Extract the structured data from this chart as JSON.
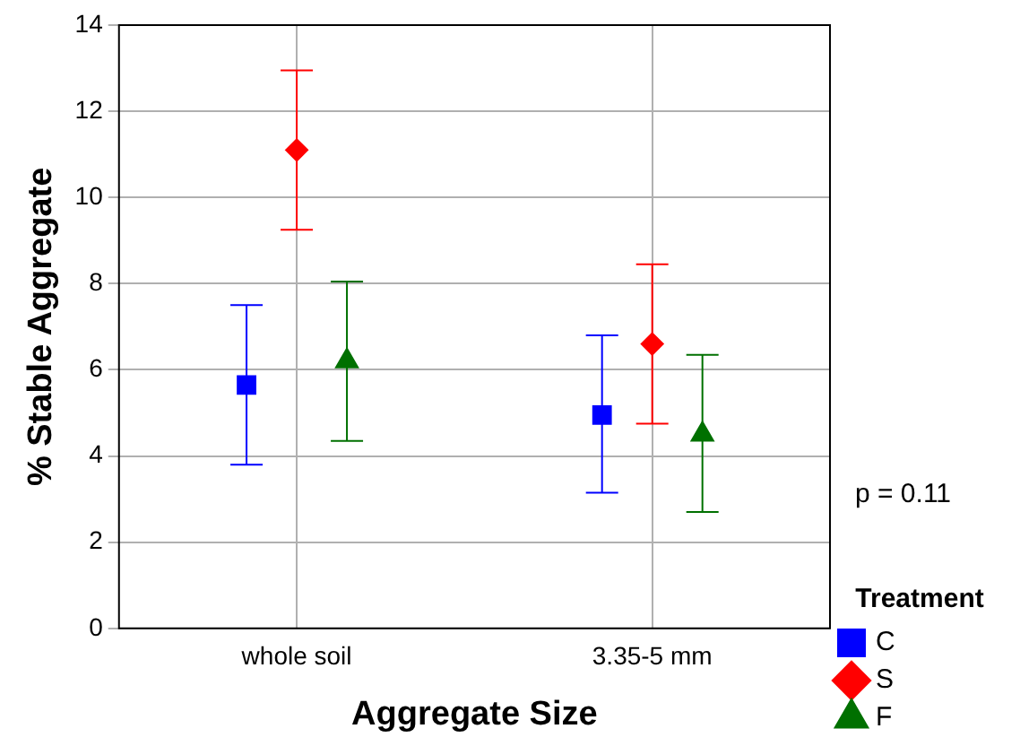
{
  "chart_data": {
    "type": "scatter",
    "xlabel": "Aggregate Size",
    "ylabel": "% Stable Aggregate",
    "legend_title": "Treatment",
    "categories": [
      "whole soil",
      "3.35-5 mm"
    ],
    "series": [
      {
        "name": "C",
        "color": "#0000ff",
        "marker": "square",
        "x": [
          "whole soil",
          "3.35-5 mm"
        ],
        "values": [
          5.65,
          4.95
        ],
        "errors": [
          [
            3.8,
            7.5
          ],
          [
            3.15,
            6.8
          ]
        ]
      },
      {
        "name": "S",
        "color": "#ff0000",
        "marker": "diamond",
        "x": [
          "whole soil",
          "3.35-5 mm"
        ],
        "values": [
          11.1,
          6.6
        ],
        "errors": [
          [
            9.25,
            12.95
          ],
          [
            4.75,
            8.45
          ]
        ]
      },
      {
        "name": "F",
        "color": "#007000",
        "marker": "triangle",
        "x": [
          "whole soil",
          "3.35-5 mm"
        ],
        "values": [
          6.2,
          4.5
        ],
        "errors": [
          [
            4.35,
            8.05
          ],
          [
            2.7,
            6.35
          ]
        ]
      }
    ],
    "ylim": [
      0,
      14
    ],
    "yticks": [
      0,
      2,
      4,
      6,
      8,
      10,
      12,
      14
    ],
    "grid": true,
    "legend": "bottom right",
    "annotations": [
      "p = 0.11"
    ]
  }
}
